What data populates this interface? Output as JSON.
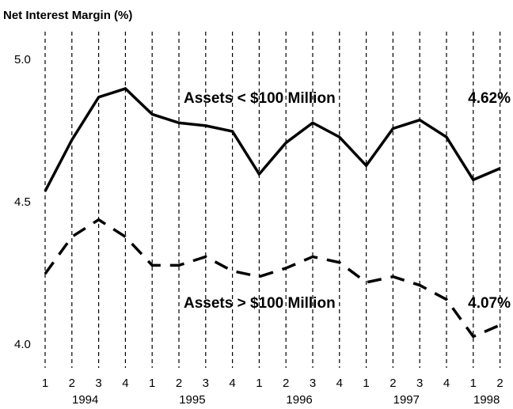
{
  "chart_data": {
    "type": "line",
    "y_axis_label": "Net Interest Margin (%)",
    "categories": [
      "1",
      "2",
      "3",
      "4",
      "1",
      "2",
      "3",
      "4",
      "1",
      "2",
      "3",
      "4",
      "1",
      "2",
      "3",
      "4",
      "1",
      "2"
    ],
    "year_groups": [
      {
        "label": "1994",
        "count": 4
      },
      {
        "label": "1995",
        "count": 4
      },
      {
        "label": "1996",
        "count": 4
      },
      {
        "label": "1997",
        "count": 4
      },
      {
        "label": "1998",
        "count": 2
      }
    ],
    "ylim": [
      3.92,
      5.1
    ],
    "yticks": [
      {
        "value": 4,
        "label": "4.0"
      },
      4.5,
      {
        "value": 5,
        "label": "5.0"
      }
    ],
    "x_grid": true,
    "series": [
      {
        "name": "Assets < $100 Million",
        "color": "#000000",
        "dash": "solid",
        "values": [
          4.54,
          4.72,
          4.87,
          4.9,
          4.81,
          4.78,
          4.77,
          4.75,
          4.6,
          4.71,
          4.78,
          4.73,
          4.63,
          4.76,
          4.79,
          4.73,
          4.58,
          4.62
        ],
        "value_labels": [
          null,
          null,
          null,
          null,
          null,
          null,
          null,
          null,
          null,
          null,
          null,
          null,
          null,
          null,
          null,
          null,
          null,
          "4.62%"
        ]
      },
      {
        "name": "Assets > $100 Million",
        "color": "#000000",
        "dash": "dashed",
        "values": [
          4.25,
          4.38,
          4.44,
          4.38,
          4.28,
          4.28,
          4.31,
          4.26,
          4.24,
          4.27,
          4.31,
          4.29,
          4.22,
          4.24,
          4.21,
          4.16,
          4.03,
          4.07
        ],
        "value_labels": [
          null,
          null,
          null,
          null,
          null,
          null,
          null,
          null,
          null,
          null,
          null,
          null,
          null,
          null,
          null,
          null,
          null,
          "4.07%"
        ]
      }
    ]
  }
}
